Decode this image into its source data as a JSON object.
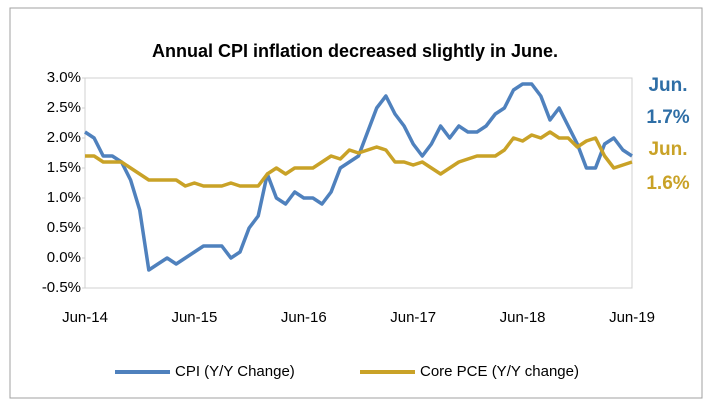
{
  "chart_data": {
    "type": "line",
    "title": "Annual CPI inflation decreased slightly in June.",
    "categories": [
      "Jun-14",
      null,
      null,
      null,
      null,
      null,
      null,
      null,
      null,
      null,
      null,
      null,
      "Jun-15",
      null,
      null,
      null,
      null,
      null,
      null,
      null,
      null,
      null,
      null,
      null,
      "Jun-16",
      null,
      null,
      null,
      null,
      null,
      null,
      null,
      null,
      null,
      null,
      null,
      "Jun-17",
      null,
      null,
      null,
      null,
      null,
      null,
      null,
      null,
      null,
      null,
      null,
      "Jun-18",
      null,
      null,
      null,
      null,
      null,
      null,
      null,
      null,
      null,
      null,
      null,
      "Jun-19"
    ],
    "series": [
      {
        "name": "CPI (Y/Y Change)",
        "color": "#4f81bd",
        "values": [
          2.1,
          2.0,
          1.7,
          1.7,
          1.6,
          1.3,
          0.8,
          -0.2,
          -0.1,
          0.0,
          -0.1,
          0.0,
          0.1,
          0.2,
          0.2,
          0.2,
          0.0,
          0.1,
          0.5,
          0.7,
          1.4,
          1.0,
          0.9,
          1.1,
          1.0,
          1.0,
          0.9,
          1.1,
          1.5,
          1.6,
          1.7,
          2.1,
          2.5,
          2.7,
          2.4,
          2.2,
          1.9,
          1.7,
          1.9,
          2.2,
          2.0,
          2.2,
          2.1,
          2.1,
          2.2,
          2.4,
          2.5,
          2.8,
          2.9,
          2.9,
          2.7,
          2.3,
          2.5,
          2.2,
          1.9,
          1.5,
          1.5,
          1.9,
          2.0,
          1.8,
          1.7
        ]
      },
      {
        "name": "Core PCE (Y/Y change)",
        "color": "#c9a227",
        "values": [
          1.7,
          1.7,
          1.6,
          1.6,
          1.6,
          1.5,
          1.4,
          1.3,
          1.3,
          1.3,
          1.3,
          1.2,
          1.25,
          1.2,
          1.2,
          1.2,
          1.25,
          1.2,
          1.2,
          1.2,
          1.4,
          1.5,
          1.4,
          1.5,
          1.5,
          1.5,
          1.6,
          1.7,
          1.65,
          1.8,
          1.75,
          1.8,
          1.85,
          1.8,
          1.6,
          1.6,
          1.55,
          1.6,
          1.5,
          1.4,
          1.5,
          1.6,
          1.65,
          1.7,
          1.7,
          1.7,
          1.8,
          2.0,
          1.95,
          2.05,
          2.0,
          2.1,
          2.0,
          2.0,
          1.85,
          1.95,
          2.0,
          1.7,
          1.5,
          1.55,
          1.6
        ]
      }
    ],
    "ylim": [
      -0.5,
      3.0
    ],
    "yticks": [
      {
        "value": -0.5,
        "label": "-0.5%"
      },
      {
        "value": 0,
        "label": "0.0%"
      },
      {
        "value": 0.5,
        "label": "0.5%"
      },
      {
        "value": 1,
        "label": "1.0%"
      },
      {
        "value": 1.5,
        "label": "1.5%"
      },
      {
        "value": 2,
        "label": "2.0%"
      },
      {
        "value": 2.5,
        "label": "2.5%"
      },
      {
        "value": 3,
        "label": "3.0%"
      }
    ],
    "annotations": [
      {
        "lines": [
          "Jun.",
          "1.7%"
        ],
        "color": "#2e6ea6"
      },
      {
        "lines": [
          "Jun.",
          "1.6%"
        ],
        "color": "#c9a227"
      }
    ],
    "legend": "bottom"
  }
}
